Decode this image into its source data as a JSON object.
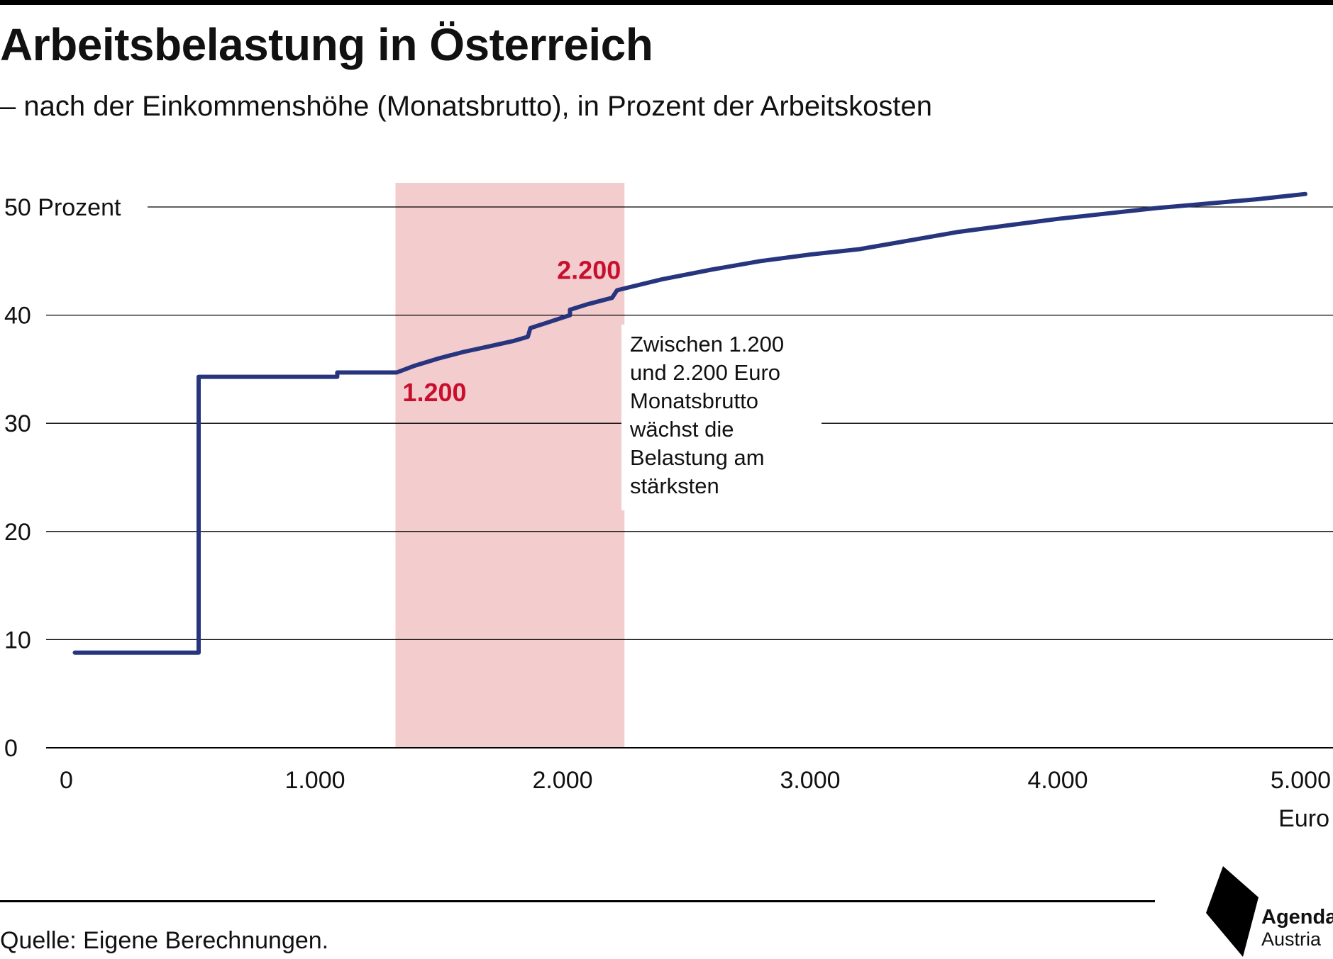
{
  "title": "Arbeitsbelastung in Österreich",
  "subtitle": "– nach der Einkommenshöhe (Monatsbrutto), in Prozent der Arbeitskosten",
  "source": "Quelle: Eigene Berechnungen.",
  "logo": {
    "line1": "Agenda",
    "line2": "Austria"
  },
  "colors": {
    "line": "#27357e",
    "band": "#f3ccce",
    "highlight": "#c8102e",
    "grid": "#000000"
  },
  "annotation": "Zwischen 1.200\nund 2.200 Euro\nMonatsbrutto\nwächst die\nBelastung am\nstärksten",
  "chart_data": {
    "type": "line",
    "title": "Arbeitsbelastung in Österreich",
    "xlabel": "Euro",
    "ylabel": "Prozent",
    "xlim": [
      0,
      5000
    ],
    "ylim": [
      0,
      50
    ],
    "grid": "horizontal",
    "y_ticks": [
      {
        "value": 0,
        "label": "0"
      },
      {
        "value": 10,
        "label": "10"
      },
      {
        "value": 20,
        "label": "20"
      },
      {
        "value": 30,
        "label": "30"
      },
      {
        "value": 40,
        "label": "40"
      },
      {
        "value": 50,
        "label": "50 Prozent"
      }
    ],
    "x_ticks": [
      {
        "value": 0,
        "label": "0"
      },
      {
        "value": 1000,
        "label": "1.000"
      },
      {
        "value": 2000,
        "label": "2.000"
      },
      {
        "value": 3000,
        "label": "3.000"
      },
      {
        "value": 4000,
        "label": "4.000"
      },
      {
        "value": 5000,
        "label": "5.000"
      }
    ],
    "x_unit_label": "Euro",
    "highlight_band": {
      "from": 1325,
      "to": 2250
    },
    "highlight_labels": [
      {
        "x": 1200,
        "y": 34.8,
        "label": "1.200"
      },
      {
        "x": 2200,
        "y": 42.3,
        "label": "2.200"
      }
    ],
    "series": [
      {
        "points": [
          [
            30,
            8.8
          ],
          [
            530,
            8.8
          ],
          [
            530,
            34.3
          ],
          [
            1090,
            34.3
          ],
          [
            1090,
            34.7
          ],
          [
            1330,
            34.7
          ],
          [
            1400,
            35.3
          ],
          [
            1500,
            36.0
          ],
          [
            1600,
            36.6
          ],
          [
            1700,
            37.1
          ],
          [
            1800,
            37.6
          ],
          [
            1860,
            38.0
          ],
          [
            1870,
            38.8
          ],
          [
            1950,
            39.4
          ],
          [
            2030,
            40.0
          ],
          [
            2030,
            40.5
          ],
          [
            2100,
            41.0
          ],
          [
            2200,
            41.6
          ],
          [
            2220,
            42.3
          ],
          [
            2400,
            43.3
          ],
          [
            2600,
            44.2
          ],
          [
            2800,
            45.0
          ],
          [
            3000,
            45.6
          ],
          [
            3200,
            46.1
          ],
          [
            3400,
            46.9
          ],
          [
            3600,
            47.7
          ],
          [
            3800,
            48.3
          ],
          [
            4000,
            48.9
          ],
          [
            4200,
            49.4
          ],
          [
            4400,
            49.9
          ],
          [
            4600,
            50.3
          ],
          [
            4800,
            50.7
          ],
          [
            5000,
            51.2
          ]
        ]
      }
    ]
  }
}
